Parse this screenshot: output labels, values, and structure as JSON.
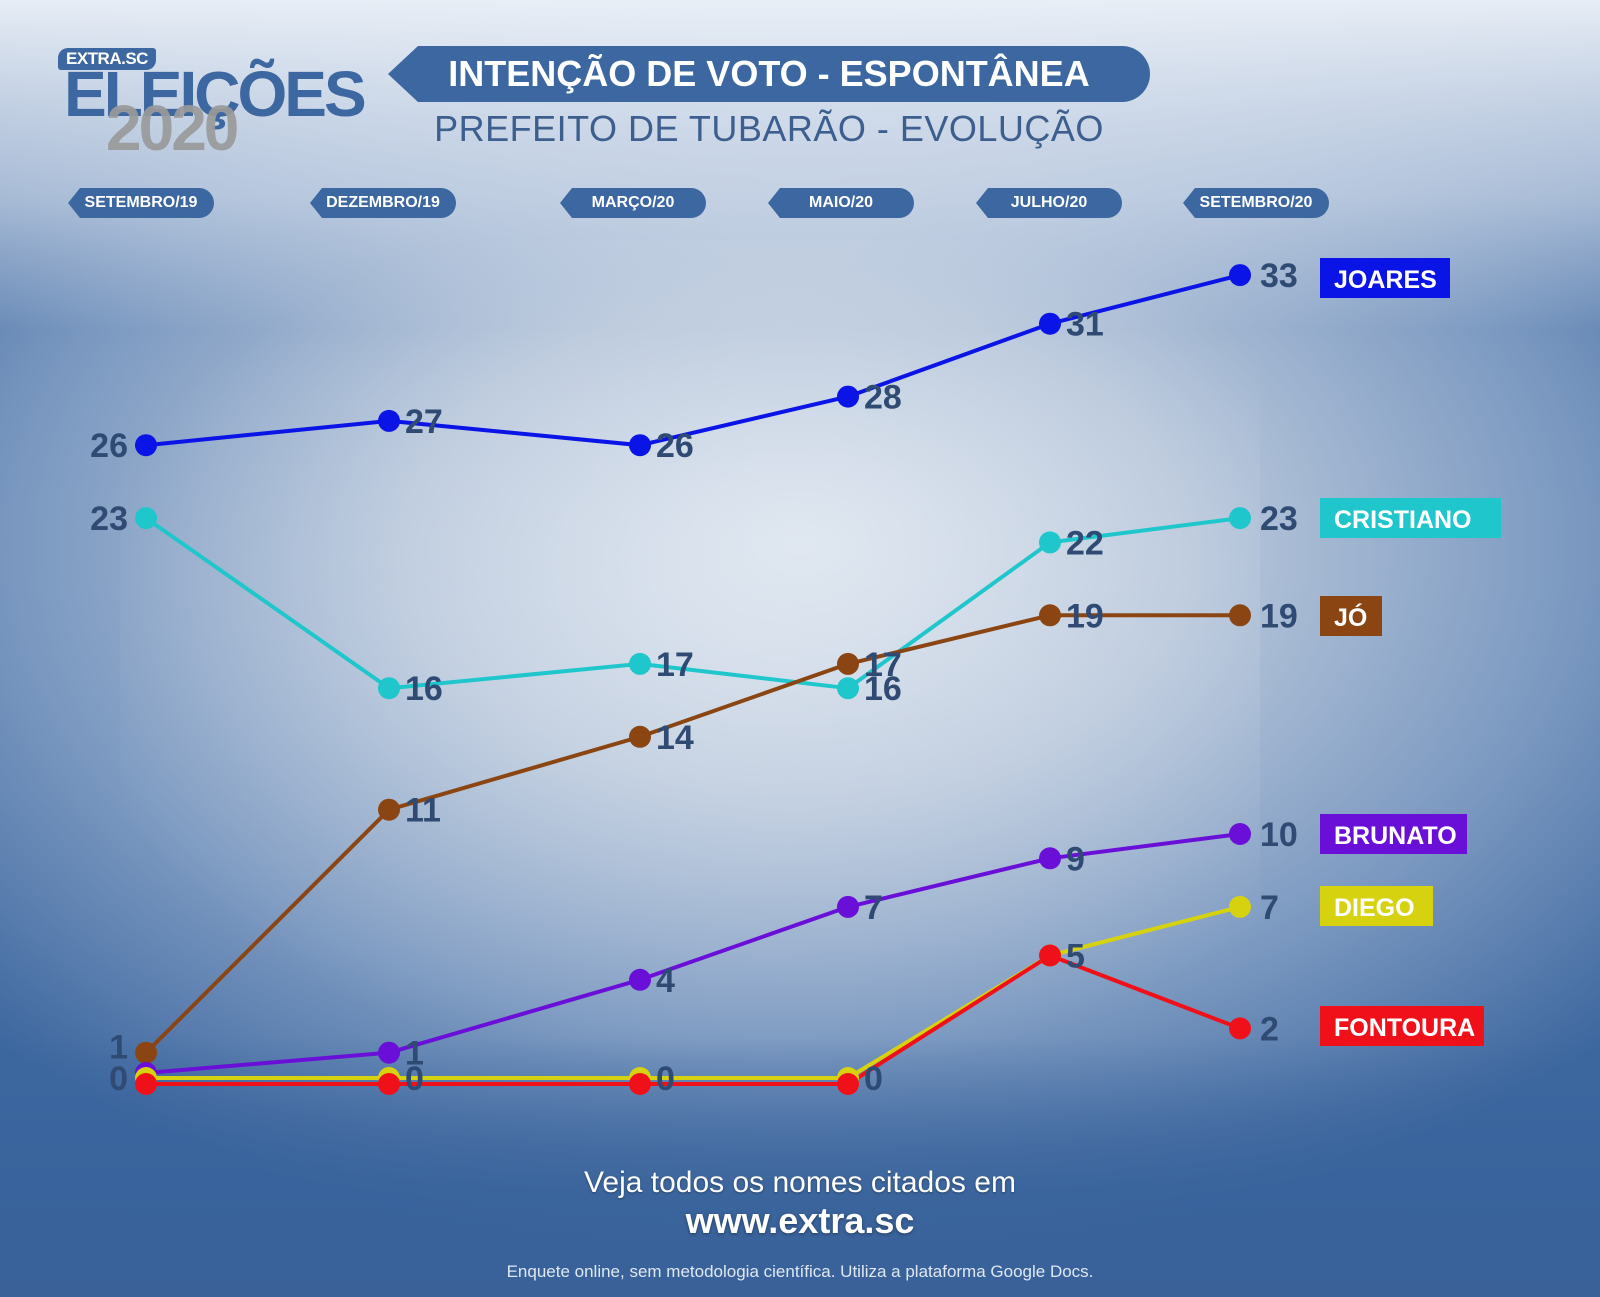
{
  "logo": {
    "brand": "EXTRA.SC",
    "word": "ELEIÇÕES",
    "year": "2020"
  },
  "header": {
    "title": "INTENÇÃO DE VOTO - ESPONTÂNEA",
    "subtitle": "PREFEITO DE TUBARÃO - EVOLUÇÃO"
  },
  "periods": [
    "SETEMBRO/19",
    "DEZEMBRO/19",
    "MARÇO/20",
    "MAIO/20",
    "JULHO/20",
    "SETEMBRO/20"
  ],
  "chart_data": {
    "type": "line",
    "title": "INTENÇÃO DE VOTO - ESPONTÂNEA",
    "subtitle": "PREFEITO DE TUBARÃO - EVOLUÇÃO",
    "categories": [
      "SETEMBRO/19",
      "DEZEMBRO/19",
      "MARÇO/20",
      "MAIO/20",
      "JULHO/20",
      "SETEMBRO/20"
    ],
    "ylim": [
      0,
      34
    ],
    "grid": false,
    "legend": "right, at line ends",
    "series": [
      {
        "name": "JOARES",
        "color": "#0a14e6",
        "values": [
          26,
          27,
          26,
          28,
          31,
          33
        ]
      },
      {
        "name": "CRISTIANO",
        "color": "#1fc6cc",
        "values": [
          23,
          16,
          17,
          16,
          22,
          23
        ]
      },
      {
        "name": "JÓ",
        "color": "#8b4513",
        "values": [
          1,
          11,
          14,
          17,
          19,
          19
        ]
      },
      {
        "name": "BRUNATO",
        "color": "#6a0fd8",
        "values": [
          0,
          1,
          4,
          7,
          9,
          10
        ]
      },
      {
        "name": "DIEGO",
        "color": "#d6d20f",
        "values": [
          0,
          0,
          0,
          0,
          5,
          7
        ]
      },
      {
        "name": "FONTOURA",
        "color": "#f0101a",
        "values": [
          0,
          0,
          0,
          0,
          5,
          2
        ]
      }
    ]
  },
  "footer": {
    "line1": "Veja todos os nomes citados em",
    "line2": "www.extra.sc",
    "note": "Enquete online, sem metodologia científica. Utiliza a plataforma Google Docs."
  }
}
